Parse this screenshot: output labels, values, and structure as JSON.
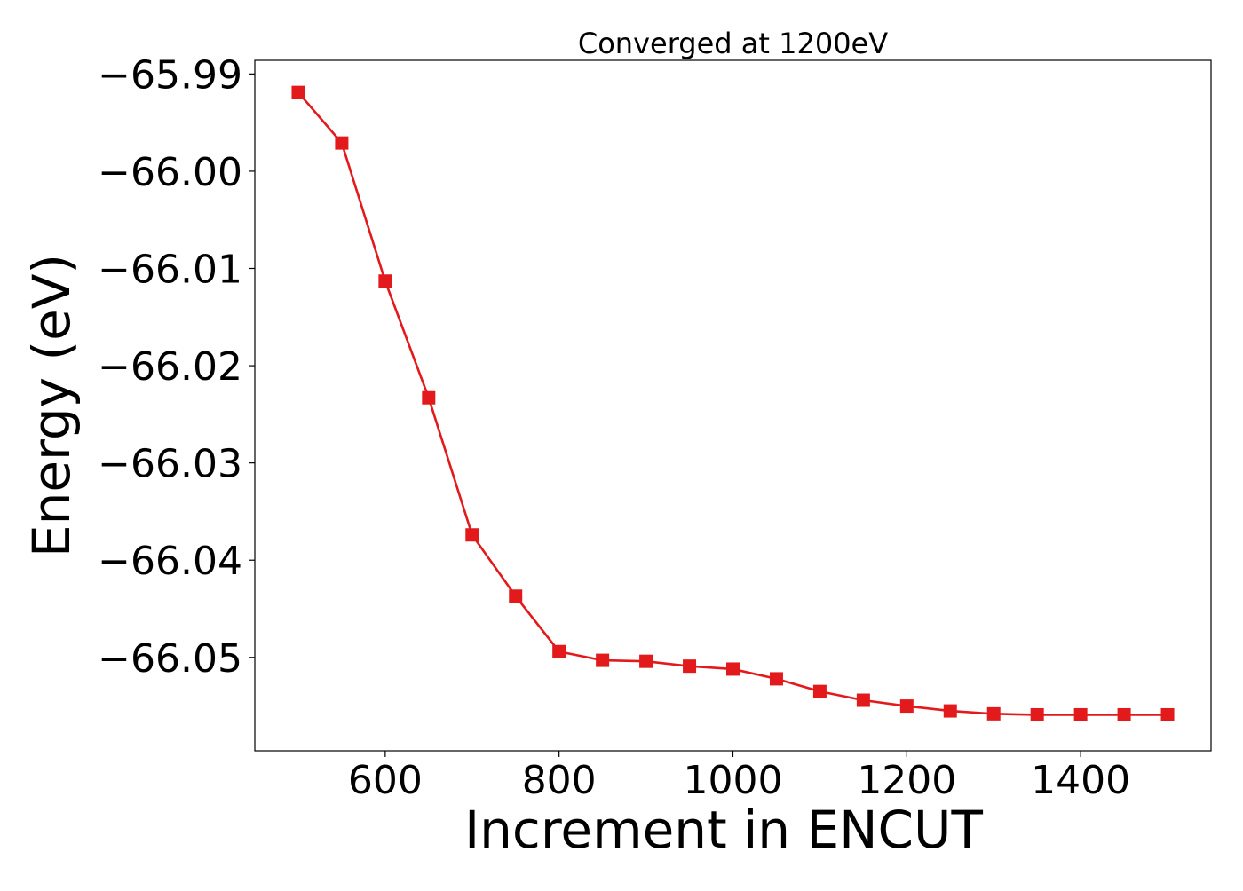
{
  "chart_data": {
    "type": "line",
    "title": "Converged at 1200eV",
    "xlabel": "Increment in ENCUT",
    "ylabel": "Energy (eV)",
    "xlim": [
      450,
      1550
    ],
    "ylim": [
      -66.0596,
      -65.9886
    ],
    "x_ticks": [
      600,
      800,
      1000,
      1200,
      1400
    ],
    "x_tick_labels": [
      "600",
      "800",
      "1000",
      "1200",
      "1400"
    ],
    "y_ticks": [
      -65.99,
      -66.0,
      -66.01,
      -66.02,
      -66.03,
      -66.04,
      -66.05
    ],
    "y_tick_labels": [
      "−65.99",
      "−66.00",
      "−66.01",
      "−66.02",
      "−66.03",
      "−66.04",
      "−66.05"
    ],
    "grid": false,
    "series": [
      {
        "color": "#e31a1c",
        "marker": "square",
        "x": [
          500,
          550,
          600,
          650,
          700,
          750,
          800,
          850,
          900,
          950,
          1000,
          1050,
          1100,
          1150,
          1200,
          1250,
          1300,
          1350,
          1400,
          1450,
          1500
        ],
        "y": [
          -65.9919,
          -65.9971,
          -66.0113,
          -66.0233,
          -66.0374,
          -66.0437,
          -66.0494,
          -66.0503,
          -66.0504,
          -66.0509,
          -66.0512,
          -66.0522,
          -66.0535,
          -66.0544,
          -66.055,
          -66.0555,
          -66.0558,
          -66.0559,
          -66.0559,
          -66.0559,
          -66.0559
        ]
      }
    ]
  }
}
